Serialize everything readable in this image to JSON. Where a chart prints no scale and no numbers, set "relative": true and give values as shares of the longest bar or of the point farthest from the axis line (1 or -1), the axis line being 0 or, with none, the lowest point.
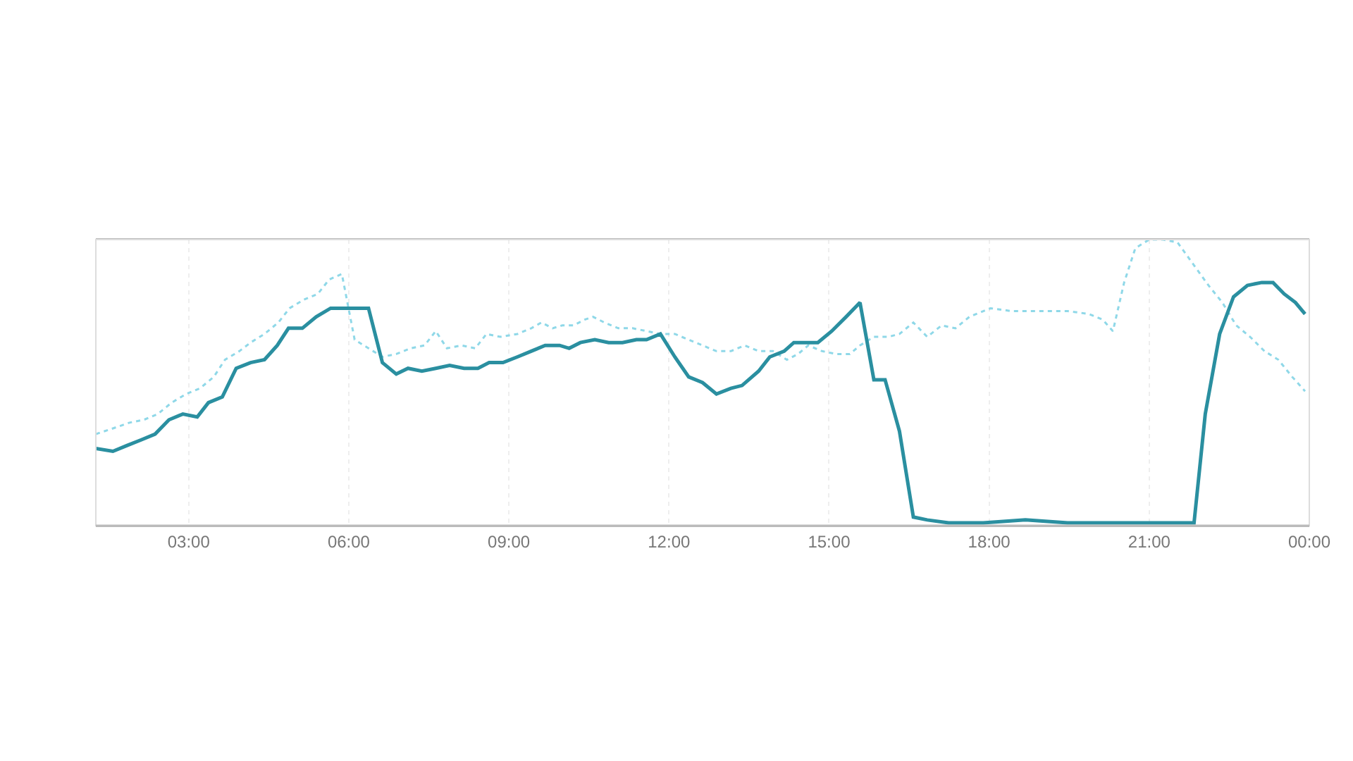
{
  "chart_data": {
    "type": "line",
    "relative": true,
    "grid": "x",
    "marker": "none",
    "xlim": [
      1.26,
      24
    ],
    "xticks": [
      {
        "value": 3,
        "label": "03:00"
      },
      {
        "value": 6,
        "label": "06:00"
      },
      {
        "value": 9,
        "label": "09:00"
      },
      {
        "value": 12,
        "label": "12:00"
      },
      {
        "value": 15,
        "label": "15:00"
      },
      {
        "value": 18,
        "label": "18:00"
      },
      {
        "value": 21,
        "label": "21:00"
      },
      {
        "value": 24,
        "label": "00:00"
      }
    ],
    "series": [
      {
        "color": "#8fd8e8",
        "line_style": "dotted",
        "x": [
          1.26,
          1.58,
          1.89,
          2.16,
          2.42,
          2.68,
          2.95,
          3.21,
          3.47,
          3.68,
          3.95,
          4.16,
          4.42,
          4.68,
          4.89,
          5.16,
          5.42,
          5.63,
          5.87,
          6.11,
          6.37,
          6.63,
          6.89,
          7.16,
          7.42,
          7.63,
          7.84,
          8.11,
          8.37,
          8.58,
          8.84,
          9.16,
          9.42,
          9.61,
          9.82,
          10.0,
          10.21,
          10.42,
          10.58,
          10.79,
          11.05,
          11.32,
          11.58,
          11.84,
          12.11,
          12.37,
          12.63,
          12.89,
          13.16,
          13.42,
          13.68,
          13.95,
          14.21,
          14.42,
          14.61,
          14.87,
          15.13,
          15.39,
          15.58,
          15.84,
          16.11,
          16.32,
          16.58,
          16.84,
          17.11,
          17.37,
          17.63,
          18.03,
          18.42,
          18.95,
          19.47,
          19.87,
          20.13,
          20.32,
          20.53,
          20.74,
          21.0,
          21.26,
          21.53,
          21.84,
          22.11,
          22.37,
          22.63,
          22.89,
          23.16,
          23.42,
          23.68,
          23.92
        ],
        "values": [
          0.32,
          0.34,
          0.36,
          0.37,
          0.39,
          0.43,
          0.46,
          0.48,
          0.52,
          0.58,
          0.61,
          0.64,
          0.67,
          0.71,
          0.76,
          0.79,
          0.81,
          0.86,
          0.88,
          0.65,
          0.62,
          0.59,
          0.6,
          0.62,
          0.63,
          0.68,
          0.62,
          0.63,
          0.62,
          0.67,
          0.66,
          0.67,
          0.69,
          0.71,
          0.69,
          0.7,
          0.7,
          0.72,
          0.73,
          0.71,
          0.69,
          0.69,
          0.68,
          0.67,
          0.67,
          0.65,
          0.63,
          0.61,
          0.61,
          0.63,
          0.61,
          0.61,
          0.58,
          0.6,
          0.63,
          0.61,
          0.6,
          0.6,
          0.63,
          0.66,
          0.66,
          0.67,
          0.71,
          0.66,
          0.7,
          0.69,
          0.73,
          0.76,
          0.75,
          0.75,
          0.75,
          0.74,
          0.72,
          0.68,
          0.85,
          0.97,
          1.0,
          1.0,
          0.99,
          0.91,
          0.84,
          0.78,
          0.7,
          0.66,
          0.61,
          0.58,
          0.52,
          0.47
        ]
      },
      {
        "color": "#2a8fa0",
        "line_style": "solid",
        "x": [
          1.26,
          1.58,
          1.84,
          2.11,
          2.37,
          2.63,
          2.89,
          3.16,
          3.37,
          3.63,
          3.89,
          4.16,
          4.42,
          4.66,
          4.87,
          5.13,
          5.39,
          5.66,
          5.92,
          6.37,
          6.63,
          6.89,
          7.11,
          7.37,
          7.63,
          7.89,
          8.16,
          8.42,
          8.63,
          8.89,
          9.16,
          9.42,
          9.68,
          9.95,
          10.13,
          10.34,
          10.61,
          10.87,
          11.13,
          11.39,
          11.58,
          11.84,
          12.11,
          12.37,
          12.63,
          12.89,
          13.16,
          13.37,
          13.68,
          13.89,
          14.16,
          14.34,
          14.61,
          14.79,
          15.05,
          15.32,
          15.58,
          15.84,
          16.05,
          16.32,
          16.58,
          16.84,
          17.24,
          17.89,
          18.68,
          19.47,
          20.26,
          21.05,
          21.45,
          21.84,
          22.05,
          22.32,
          22.58,
          22.84,
          23.11,
          23.32,
          23.53,
          23.74,
          23.92
        ],
        "values": [
          0.27,
          0.26,
          0.28,
          0.3,
          0.32,
          0.37,
          0.39,
          0.38,
          0.43,
          0.45,
          0.55,
          0.57,
          0.58,
          0.63,
          0.69,
          0.69,
          0.73,
          0.76,
          0.76,
          0.76,
          0.57,
          0.53,
          0.55,
          0.54,
          0.55,
          0.56,
          0.55,
          0.55,
          0.57,
          0.57,
          0.59,
          0.61,
          0.63,
          0.63,
          0.62,
          0.64,
          0.65,
          0.64,
          0.64,
          0.65,
          0.65,
          0.67,
          0.59,
          0.52,
          0.5,
          0.46,
          0.48,
          0.49,
          0.54,
          0.59,
          0.61,
          0.64,
          0.64,
          0.64,
          0.68,
          0.73,
          0.78,
          0.51,
          0.51,
          0.33,
          0.03,
          0.02,
          0.01,
          0.01,
          0.02,
          0.01,
          0.01,
          0.01,
          0.01,
          0.01,
          0.39,
          0.67,
          0.8,
          0.84,
          0.85,
          0.85,
          0.81,
          0.78,
          0.74
        ]
      }
    ]
  }
}
